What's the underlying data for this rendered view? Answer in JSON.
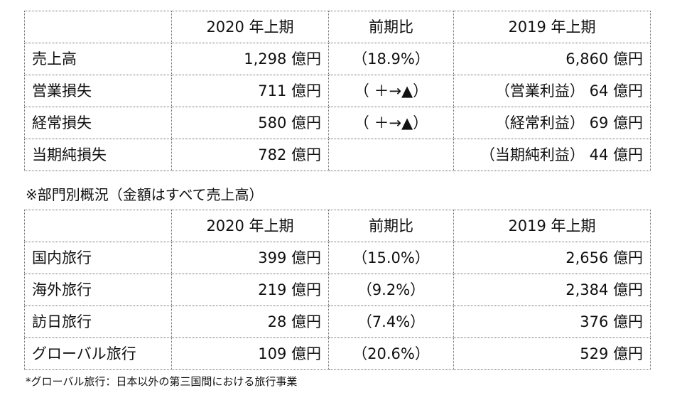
{
  "table1": {
    "header": [
      "",
      "2020 年上期",
      "前期比",
      "2019 年上期"
    ],
    "rows": [
      [
        "売上高",
        "1,298 億円",
        "（18.9%）",
        "6,860 億円"
      ],
      [
        "営業損失",
        "711 億円",
        "（ ＋→▲）",
        "（営業利益） 64 億円"
      ],
      [
        "経常損失",
        "580 億円",
        "（ ＋→▲）",
        "（経常利益） 69 億円"
      ],
      [
        "当期純損失",
        "782 億円",
        "",
        "（当期純利益） 44 億円"
      ]
    ]
  },
  "caption": "※部門別概況（金額はすべて売上高）",
  "table2": {
    "header": [
      "",
      "2020 年上期",
      "前期比",
      "2019 年上期"
    ],
    "rows": [
      [
        "国内旅行",
        "399 億円",
        "（15.0%）",
        "2,656 億円"
      ],
      [
        "海外旅行",
        "219 億円",
        "（9.2%）",
        "2,384 億円"
      ],
      [
        "訪日旅行",
        "28 億円",
        "（7.4%）",
        "376 億円"
      ],
      [
        "グローバル旅行",
        "109 億円",
        "（20.6%）",
        "529 億円"
      ]
    ]
  },
  "footnote": "*グローバル旅行：日本以外の第三国間における旅行事業"
}
